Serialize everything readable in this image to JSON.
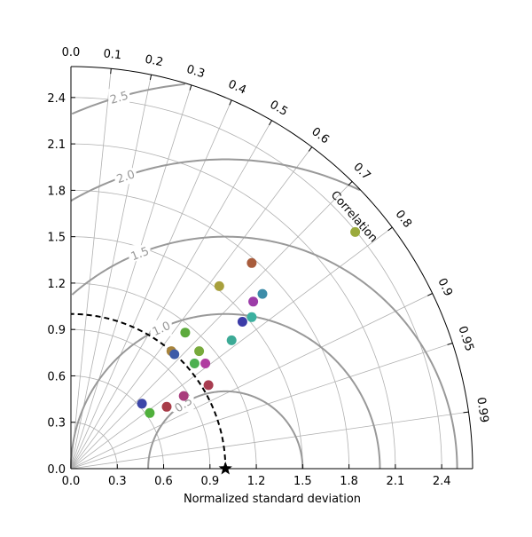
{
  "chart_data": {
    "type": "scatter",
    "subtype": "taylor-diagram",
    "xlabel": "Normalized standard deviation",
    "corr_label": "Correlation",
    "std_max": 2.6,
    "std_ticks": [
      "0.0",
      "0.3",
      "0.6",
      "0.9",
      "1.2",
      "1.5",
      "1.8",
      "2.1",
      "2.4"
    ],
    "corr_ticks": [
      "0.0",
      "0.1",
      "0.2",
      "0.3",
      "0.4",
      "0.5",
      "0.6",
      "0.7",
      "0.8",
      "0.9",
      "0.95",
      "0.99"
    ],
    "grid": true,
    "reference": {
      "std": 1.0,
      "marker": "star"
    },
    "rms_contours": [
      {
        "value": 0.5,
        "label": "0.5"
      },
      {
        "value": 1.0,
        "label": "1.0"
      },
      {
        "value": 1.5,
        "label": "1.5"
      },
      {
        "value": 2.0,
        "label": "2.0"
      },
      {
        "value": 2.5,
        "label": "2.5"
      }
    ],
    "points": [
      {
        "x": 1.84,
        "y": 1.53,
        "color": "#9aaa3c"
      },
      {
        "x": 1.17,
        "y": 1.33,
        "color": "#a85c3c"
      },
      {
        "x": 0.96,
        "y": 1.18,
        "color": "#a8a03c"
      },
      {
        "x": 1.24,
        "y": 1.13,
        "color": "#3c8ca8"
      },
      {
        "x": 1.18,
        "y": 1.08,
        "color": "#9c3ca8"
      },
      {
        "x": 1.17,
        "y": 0.98,
        "color": "#3cb0a0"
      },
      {
        "x": 1.11,
        "y": 0.95,
        "color": "#3c3ca8"
      },
      {
        "x": 1.04,
        "y": 0.83,
        "color": "#3caa96"
      },
      {
        "x": 0.74,
        "y": 0.88,
        "color": "#5caa3c"
      },
      {
        "x": 0.83,
        "y": 0.76,
        "color": "#78aa3c"
      },
      {
        "x": 0.65,
        "y": 0.76,
        "color": "#a8843c"
      },
      {
        "x": 0.67,
        "y": 0.74,
        "color": "#3c5aa8"
      },
      {
        "x": 0.8,
        "y": 0.68,
        "color": "#4cb050"
      },
      {
        "x": 0.87,
        "y": 0.68,
        "color": "#b03ca0"
      },
      {
        "x": 0.89,
        "y": 0.54,
        "color": "#a83c50"
      },
      {
        "x": 0.73,
        "y": 0.47,
        "color": "#a83c7c"
      },
      {
        "x": 0.62,
        "y": 0.4,
        "color": "#a83c48"
      },
      {
        "x": 0.46,
        "y": 0.42,
        "color": "#3c46a8"
      },
      {
        "x": 0.51,
        "y": 0.36,
        "color": "#50b03c"
      }
    ]
  }
}
